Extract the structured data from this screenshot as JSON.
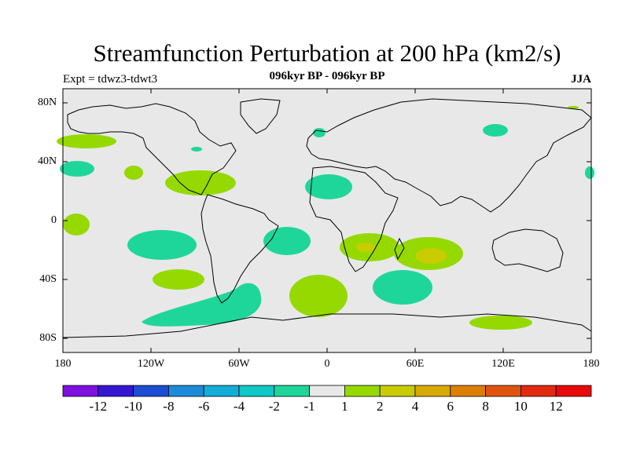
{
  "title": "Streamfunction Perturbation at 200 hPa (km2/s)",
  "subtitle": "096kyr BP - 096kyr BP",
  "experiment": "Expt = tdwz3-tdwt3",
  "season": "JJA",
  "map": {
    "ocean_color": "#e8e8e8",
    "lat_ticks": [
      "80N",
      "40N",
      "0",
      "40S",
      "80S"
    ],
    "lon_ticks": [
      "180",
      "120W",
      "60W",
      "0",
      "60E",
      "120E",
      "180"
    ]
  },
  "colorbar": {
    "labels": [
      "-12",
      "-10",
      "-8",
      "-6",
      "-4",
      "-2",
      "-1",
      "1",
      "2",
      "4",
      "6",
      "8",
      "10",
      "12"
    ],
    "colors": [
      "#7e10e0",
      "#3516d2",
      "#1c4dd2",
      "#1c8ad8",
      "#12aed8",
      "#10c8c8",
      "#1fd69a",
      "#e8e8e8",
      "#95d900",
      "#c8cc00",
      "#d8aa00",
      "#dc7f00",
      "#e0530e",
      "#e22a10",
      "#e80a0a"
    ]
  }
}
